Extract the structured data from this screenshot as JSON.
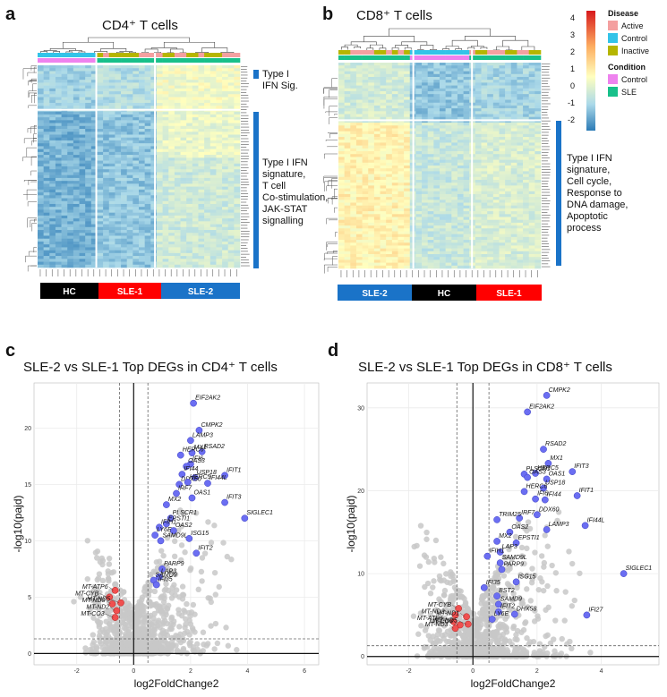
{
  "panels": {
    "a": {
      "letter": "a",
      "title": "CD4⁺ T cells"
    },
    "b": {
      "letter": "b",
      "title": "CD8⁺ T cells"
    },
    "c": {
      "letter": "c",
      "title": "SLE-2 vs SLE-1 Top DEGs in CD4⁺ T cells"
    },
    "d": {
      "letter": "d",
      "title": "SLE-2 vs SLE-1 Top DEGs in CD8⁺ T cells"
    }
  },
  "heatmap_a": {
    "annotations": [
      {
        "lines": [
          "Type I",
          "IFN Sig."
        ]
      },
      {
        "lines": [
          "Type I IFN",
          "signature,",
          "T cell",
          "Co-stimulation,",
          "JAK-STAT",
          "signalling"
        ]
      }
    ],
    "groups": [
      {
        "label": "HC",
        "color": "#000000"
      },
      {
        "label": "SLE-1",
        "color": "#ff0000"
      },
      {
        "label": "SLE-2",
        "color": "#1a73c8"
      }
    ]
  },
  "heatmap_b": {
    "annotations": [
      {
        "lines": [
          "Type I IFN",
          "signature,",
          "Cell cycle,",
          "Response to",
          "DNA damage,",
          "Apoptotic",
          "process"
        ]
      }
    ],
    "groups": [
      {
        "label": "SLE-2",
        "color": "#1a73c8"
      },
      {
        "label": "HC",
        "color": "#000000"
      },
      {
        "label": "SLE-1",
        "color": "#ff0000"
      }
    ]
  },
  "legend": {
    "scale_ticks": [
      "4",
      "3",
      "2",
      "1",
      "0",
      "-1",
      "-2"
    ],
    "scale_colors": [
      "#d7191c",
      "#fdae61",
      "#ffffbf",
      "#abd9e9",
      "#2c7bb6"
    ],
    "disease_title": "Disease",
    "disease_items": [
      {
        "label": "Active",
        "color": "#f4a0a0"
      },
      {
        "label": "Control",
        "color": "#33c3e8"
      },
      {
        "label": "Inactive",
        "color": "#b5b500"
      }
    ],
    "condition_title": "Condition",
    "condition_items": [
      {
        "label": "Control",
        "color": "#ee82ee"
      },
      {
        "label": "SLE",
        "color": "#18c08a"
      }
    ]
  },
  "chart_data": [
    {
      "type": "scatter",
      "panel": "c",
      "title": "SLE-2 vs SLE-1 Top DEGs in CD4⁺ T cells",
      "xlabel": "log2FoldChange2",
      "ylabel": "-log10(pajd)",
      "xlim": [
        -3.5,
        6.5
      ],
      "ylim": [
        -1,
        24
      ],
      "xticks": [
        "-2",
        "0",
        "2",
        "4",
        "6"
      ],
      "yticks": [
        "0",
        "5",
        "10",
        "15",
        "20"
      ],
      "thresholds": {
        "x": [
          -0.5,
          0.5
        ],
        "y": 1.3
      },
      "up": [
        {
          "g": "EIF2AK2",
          "x": 2.1,
          "y": 22.2
        },
        {
          "g": "CMPK2",
          "x": 2.3,
          "y": 19.8
        },
        {
          "g": "LAMP3",
          "x": 2.0,
          "y": 18.9
        },
        {
          "g": "RSAD2",
          "x": 2.4,
          "y": 17.9
        },
        {
          "g": "MX1",
          "x": 2.05,
          "y": 17.8
        },
        {
          "g": "HERC6",
          "x": 1.65,
          "y": 17.6
        },
        {
          "g": "IFI6",
          "x": 2.0,
          "y": 16.8
        },
        {
          "g": "OAS3",
          "x": 1.85,
          "y": 16.6
        },
        {
          "g": "IFI44",
          "x": 1.7,
          "y": 15.9
        },
        {
          "g": "USP18",
          "x": 2.15,
          "y": 15.6
        },
        {
          "g": "IFIT1",
          "x": 3.2,
          "y": 15.8
        },
        {
          "g": "DDX60",
          "x": 1.6,
          "y": 15.0
        },
        {
          "g": "HERC5",
          "x": 1.9,
          "y": 15.2
        },
        {
          "g": "IFI44L",
          "x": 2.6,
          "y": 15.1
        },
        {
          "g": "IRF7",
          "x": 1.5,
          "y": 14.2
        },
        {
          "g": "OAS1",
          "x": 2.05,
          "y": 13.8
        },
        {
          "g": "MX2",
          "x": 1.15,
          "y": 13.2
        },
        {
          "g": "IFIT3",
          "x": 3.2,
          "y": 13.4
        },
        {
          "g": "PLSCR1",
          "x": 1.3,
          "y": 12.0
        },
        {
          "g": "SIGLEC1",
          "x": 3.9,
          "y": 12.0
        },
        {
          "g": "EPSTI1",
          "x": 1.15,
          "y": 11.5
        },
        {
          "g": "IFIH1",
          "x": 0.9,
          "y": 11.2
        },
        {
          "g": "OAS2",
          "x": 1.4,
          "y": 10.9
        },
        {
          "g": "LY6E",
          "x": 0.75,
          "y": 10.5
        },
        {
          "g": "SAMD9L",
          "x": 0.95,
          "y": 10.0
        },
        {
          "g": "ISG15",
          "x": 1.95,
          "y": 10.2
        },
        {
          "g": "IFIT2",
          "x": 2.2,
          "y": 8.9
        },
        {
          "g": "PARP9",
          "x": 1.0,
          "y": 7.5
        },
        {
          "g": "LAP3",
          "x": 0.9,
          "y": 6.8
        },
        {
          "g": "SAMD9",
          "x": 0.7,
          "y": 6.5
        },
        {
          "g": "IFI35",
          "x": 0.8,
          "y": 6.1
        }
      ],
      "down": [
        {
          "g": "MT-ATP6",
          "x": -0.65,
          "y": 5.6
        },
        {
          "g": "MT-CYB",
          "x": -0.85,
          "y": 5.0
        },
        {
          "g": "MT-ND3",
          "x": -0.75,
          "y": 4.4
        },
        {
          "g": "MT-ND5",
          "x": -0.45,
          "y": 4.5
        },
        {
          "g": "MT-ND2",
          "x": -0.6,
          "y": 3.8
        },
        {
          "g": "MT-CO3",
          "x": -0.65,
          "y": 3.2
        }
      ]
    },
    {
      "type": "scatter",
      "panel": "d",
      "title": "SLE-2 vs SLE-1 Top DEGs in CD8⁺ T cells",
      "xlabel": "log2FoldChange2",
      "ylabel": "-log10(pajd)",
      "xlim": [
        -3.3,
        5.8
      ],
      "ylim": [
        -1,
        33
      ],
      "xticks": [
        "-2",
        "0",
        "2",
        "4"
      ],
      "yticks": [
        "0",
        "10",
        "20",
        "30"
      ],
      "thresholds": {
        "x": [
          -0.5,
          0.5
        ],
        "y": 1.3
      },
      "up": [
        {
          "g": "CMPK2",
          "x": 2.3,
          "y": 31.5
        },
        {
          "g": "EIF2AK2",
          "x": 1.7,
          "y": 29.5
        },
        {
          "g": "RSAD2",
          "x": 2.2,
          "y": 25.0
        },
        {
          "g": "MX1",
          "x": 2.35,
          "y": 23.3
        },
        {
          "g": "PLSCR1",
          "x": 1.6,
          "y": 22.0
        },
        {
          "g": "HERC5",
          "x": 1.95,
          "y": 22.1
        },
        {
          "g": "OAS3",
          "x": 1.7,
          "y": 21.6
        },
        {
          "g": "OAS1",
          "x": 2.3,
          "y": 21.4
        },
        {
          "g": "IFIT3",
          "x": 3.1,
          "y": 22.3
        },
        {
          "g": "USP18",
          "x": 2.2,
          "y": 20.3
        },
        {
          "g": "HERC6",
          "x": 1.6,
          "y": 19.9
        },
        {
          "g": "IFI6",
          "x": 1.95,
          "y": 19.0
        },
        {
          "g": "IFI44",
          "x": 2.25,
          "y": 18.9
        },
        {
          "g": "DDX60",
          "x": 2.0,
          "y": 17.1
        },
        {
          "g": "IRF7",
          "x": 1.45,
          "y": 16.7
        },
        {
          "g": "IFIT1",
          "x": 3.25,
          "y": 19.4
        },
        {
          "g": "TRIM25",
          "x": 0.75,
          "y": 16.5
        },
        {
          "g": "LAMP3",
          "x": 2.3,
          "y": 15.3
        },
        {
          "g": "OAS2",
          "x": 1.15,
          "y": 15.0
        },
        {
          "g": "IFI44L",
          "x": 3.5,
          "y": 15.8
        },
        {
          "g": "MX2",
          "x": 0.75,
          "y": 13.9
        },
        {
          "g": "EPSTI1",
          "x": 1.35,
          "y": 13.7
        },
        {
          "g": "LAP3",
          "x": 0.85,
          "y": 12.6
        },
        {
          "g": "IFIH1",
          "x": 0.45,
          "y": 12.1
        },
        {
          "g": "SAMD9L",
          "x": 0.85,
          "y": 11.3
        },
        {
          "g": "PARP9",
          "x": 0.9,
          "y": 10.5
        },
        {
          "g": "ISG15",
          "x": 1.35,
          "y": 9.0
        },
        {
          "g": "SIGLEC1",
          "x": 4.7,
          "y": 10.0
        },
        {
          "g": "IFI35",
          "x": 0.35,
          "y": 8.3
        },
        {
          "g": "BST2",
          "x": 0.75,
          "y": 7.3
        },
        {
          "g": "SAMD9",
          "x": 0.8,
          "y": 6.3
        },
        {
          "g": "IFIT2",
          "x": 0.8,
          "y": 5.4
        },
        {
          "g": "DHX58",
          "x": 1.3,
          "y": 5.1
        },
        {
          "g": "IFI27",
          "x": 3.55,
          "y": 5.0
        },
        {
          "g": "LY6E",
          "x": 0.6,
          "y": 4.5
        }
      ],
      "down": [
        {
          "g": "MT-CYB",
          "x": -0.45,
          "y": 5.8
        },
        {
          "g": "MT-ND2",
          "x": -0.55,
          "y": 5.0
        },
        {
          "g": "MT-ND1",
          "x": -0.2,
          "y": 4.8
        },
        {
          "g": "MT-ATP6",
          "x": -0.6,
          "y": 4.2
        },
        {
          "g": "MT-CO3",
          "x": -0.4,
          "y": 3.8
        },
        {
          "g": "MT-ND5",
          "x": -0.15,
          "y": 3.9
        },
        {
          "g": "MT-ND3",
          "x": -0.55,
          "y": 3.4
        }
      ]
    }
  ]
}
